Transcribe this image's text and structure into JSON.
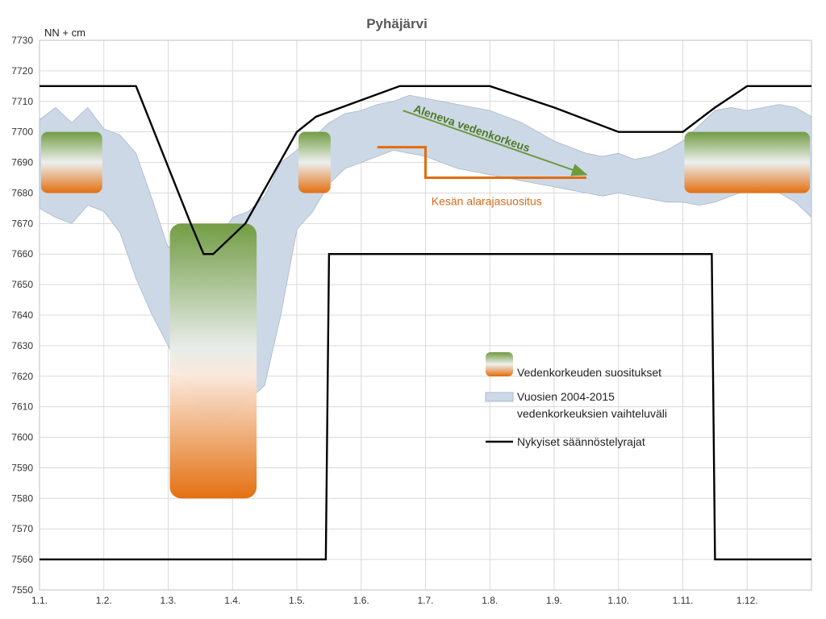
{
  "chart_data": {
    "type": "area",
    "title": "Pyhäjärvi",
    "ylabel": "NN + cm",
    "xlabel": "",
    "ylim": [
      7550,
      7730
    ],
    "ystep": 10,
    "xlim": [
      1,
      13
    ],
    "grid": true,
    "legend_position": "center-right",
    "x_tick_labels": [
      "1.1.",
      "1.2.",
      "1.3.",
      "1.4.",
      "1.5.",
      "1.6.",
      "1.7.",
      "1.8.",
      "1.9.",
      "1.10.",
      "1.11.",
      "1.12."
    ],
    "colors": {
      "band": "#ccd8e6",
      "band_edge": "#a9b8cc",
      "regulation": "#000000",
      "green": "#6f9a3e",
      "orange": "#e36c0a",
      "annotation_green": "#4f7a28",
      "annotation_orange": "#d86a1a"
    },
    "series": [
      {
        "name": "Vuosien 2004-2015 vedenkorkeuksien vaihteluväli",
        "kind": "band",
        "x": [
          1.0,
          1.25,
          1.5,
          1.75,
          2.0,
          2.25,
          2.5,
          2.75,
          3.0,
          3.25,
          3.5,
          3.75,
          4.0,
          4.25,
          4.5,
          4.75,
          5.0,
          5.25,
          5.5,
          5.75,
          6.0,
          6.25,
          6.5,
          6.75,
          7.0,
          7.25,
          7.5,
          7.75,
          8.0,
          8.25,
          8.5,
          8.75,
          9.0,
          9.25,
          9.5,
          9.75,
          10.0,
          10.25,
          10.5,
          10.75,
          11.0,
          11.25,
          11.5,
          11.75,
          12.0,
          12.25,
          12.5,
          12.75,
          13.0
        ],
        "upper": [
          7704,
          7708,
          7703,
          7708,
          7701,
          7699,
          7693,
          7678,
          7662,
          7668,
          7665,
          7664,
          7672,
          7674,
          7679,
          7690,
          7694,
          7698,
          7703,
          7706,
          7707,
          7709,
          7710,
          7712,
          7711,
          7710,
          7709,
          7708,
          7707,
          7705,
          7703,
          7700,
          7697,
          7695,
          7693,
          7692,
          7693,
          7691,
          7692,
          7694,
          7697,
          7702,
          7707,
          7708,
          7707,
          7708,
          7709,
          7708,
          7705
        ],
        "lower": [
          7675,
          7672,
          7670,
          7676,
          7674,
          7667,
          7652,
          7640,
          7630,
          7618,
          7608,
          7604,
          7608,
          7612,
          7617,
          7640,
          7668,
          7674,
          7683,
          7688,
          7690,
          7692,
          7694,
          7693,
          7692,
          7690,
          7688,
          7687,
          7686,
          7685,
          7684,
          7683,
          7682,
          7681,
          7680,
          7679,
          7680,
          7679,
          7678,
          7677,
          7677,
          7676,
          7677,
          7679,
          7681,
          7682,
          7680,
          7677,
          7672
        ]
      },
      {
        "name": "Nykyiset säännöstelyrajat",
        "kind": "upper-limit",
        "x": [
          1.0,
          2.5,
          3.35,
          3.55,
          3.7,
          4.2,
          5.0,
          5.3,
          6.6,
          8.0,
          9.0,
          10.0,
          11.0,
          11.5,
          12.0,
          13.0
        ],
        "y": [
          7715,
          7715,
          7670,
          7660,
          7660,
          7670,
          7700,
          7705,
          7715,
          7715,
          7708,
          7700,
          7700,
          7708,
          7715,
          7715
        ]
      },
      {
        "name": "Nykyiset säännöstelyrajat",
        "kind": "lower-limit",
        "x": [
          1.0,
          5.45,
          5.5,
          11.45,
          11.5,
          13.0
        ],
        "y": [
          7560,
          7560,
          7660,
          7660,
          7560,
          7560
        ]
      },
      {
        "name": "Kesän alarajasuositus",
        "kind": "step",
        "x": [
          6.25,
          6.97,
          6.97,
          7.0,
          7.0,
          9.5
        ],
        "y": [
          7695,
          7695,
          7695,
          7695,
          7685,
          7685
        ]
      }
    ],
    "recommendation_boxes": [
      {
        "x_start": 1.0,
        "x_end": 2.0,
        "y_low": 7680,
        "y_high": 7700
      },
      {
        "x_start": 3.0,
        "x_end": 4.4,
        "y_low": 7580,
        "y_high": 7670
      },
      {
        "x_start": 5.0,
        "x_end": 5.55,
        "y_low": 7680,
        "y_high": 7700
      },
      {
        "x_start": 11.0,
        "x_end": 13.0,
        "y_low": 7680,
        "y_high": 7700
      }
    ],
    "annotations": [
      {
        "text": "Aleneva vedenkorkeus",
        "x": 7.7,
        "y": 7700,
        "type": "arrow-label"
      },
      {
        "text": "Kesän alarajasuositus",
        "x": 7.95,
        "y": 7676,
        "type": "label"
      }
    ],
    "legend": [
      {
        "label": "Vedenkorkeuden suositukset",
        "kind": "gradient"
      },
      {
        "label": "Vuosien 2004-2015",
        "label2": "vedenkorkeuksien vaihteluväli",
        "kind": "band"
      },
      {
        "label": "Nykyiset säännöstelyrajat",
        "kind": "line"
      }
    ]
  }
}
